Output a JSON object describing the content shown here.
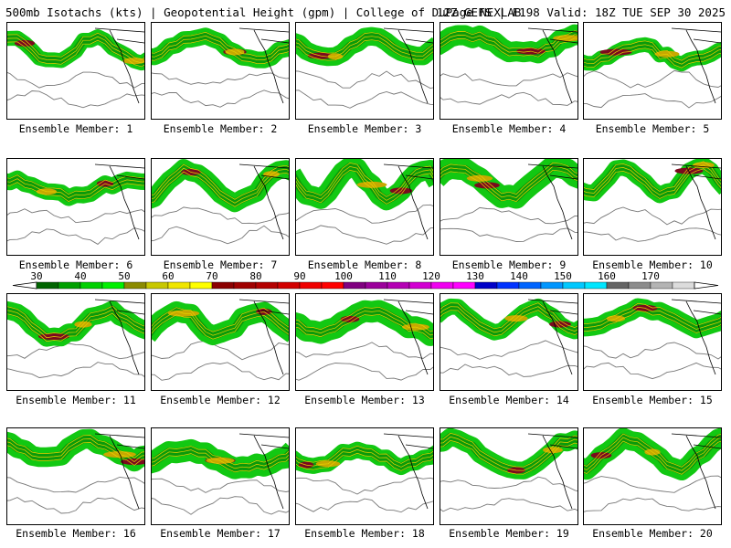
{
  "header": {
    "left": "500mb Isotachs (kts) | Geopotential Height (gpm) | College of DuPage NEXLAB",
    "right": "12Z GEFS | F198 Valid: 18Z TUE SEP 30 2025"
  },
  "panels": [
    {
      "caption": "Ensemble Member: 1"
    },
    {
      "caption": "Ensemble Member: 2"
    },
    {
      "caption": "Ensemble Member: 3"
    },
    {
      "caption": "Ensemble Member: 4"
    },
    {
      "caption": "Ensemble Member: 5"
    },
    {
      "caption": "Ensemble Member: 6"
    },
    {
      "caption": "Ensemble Member: 7"
    },
    {
      "caption": "Ensemble Member: 8"
    },
    {
      "caption": "Ensemble Member: 9"
    },
    {
      "caption": "Ensemble Member: 10"
    },
    {
      "caption": "Ensemble Member: 11"
    },
    {
      "caption": "Ensemble Member: 12"
    },
    {
      "caption": "Ensemble Member: 13"
    },
    {
      "caption": "Ensemble Member: 14"
    },
    {
      "caption": "Ensemble Member: 15"
    },
    {
      "caption": "Ensemble Member: 16"
    },
    {
      "caption": "Ensemble Member: 17"
    },
    {
      "caption": "Ensemble Member: 18"
    },
    {
      "caption": "Ensemble Member: 19"
    },
    {
      "caption": "Ensemble Member: 20"
    }
  ],
  "colorbar": {
    "labels": [
      "30",
      "40",
      "50",
      "60",
      "70",
      "80",
      "90",
      "100",
      "110",
      "120",
      "130",
      "140",
      "150",
      "160",
      "170"
    ],
    "colors": [
      "#006400",
      "#00a000",
      "#00d000",
      "#00f000",
      "#8b8b00",
      "#c8c800",
      "#f0e600",
      "#ffff00",
      "#8b0000",
      "#a00000",
      "#b40000",
      "#d20000",
      "#f00000",
      "#ff0000",
      "#800080",
      "#9b009b",
      "#b400b4",
      "#d200d2",
      "#f000f0",
      "#ff00ff",
      "#0000c8",
      "#0032ff",
      "#0064ff",
      "#0096ff",
      "#00c8ff",
      "#00e6ff",
      "#646464",
      "#8c8c8c",
      "#b4b4b4",
      "#dcdcdc"
    ]
  }
}
